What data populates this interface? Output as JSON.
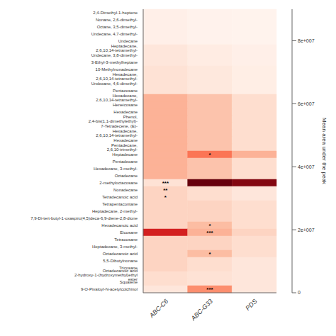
{
  "chart_data": {
    "type": "heatmap",
    "x": [
      "ABC-C6",
      "ABC-G33",
      "PDS"
    ],
    "y": [
      "2,4-Dimethyl-1-heptene",
      "Nonane, 2,6-dimethyl-",
      "Octane, 3,5-dimethyl-",
      "Undecane, 4,7-dimethyl-",
      "Undecane",
      "Heptadecane, 2,6,10,14-tetramethyl-",
      "Undecane, 3,8-dimethyl-",
      "3-Ethyl-3-methylheptane",
      "10-Methylnonadecane",
      "Hexadecane, 2,6,10,14-tetramethyl-",
      "Undecane, 4,6-dimethyl-",
      "Pentacosane",
      "Hexadecane, 2,6,10,14-tetramethyl-",
      "Heneicosane",
      "Hexadecane",
      "Phenol, 2,4-bis(1,1-dimethylethyl)-",
      "7-Tetradecene, (E)-",
      "Hexadecane, 2,6,10,14-tetramethyl-",
      "Hexadecane",
      "Pentadecane, 2,6,10-trimethyl-",
      "Heptadecane",
      "Pentadecane",
      "Hexadecane, 3-methyl-",
      "Octadecane",
      "2-methyloctacosane",
      "Nonadecane",
      "Tetradecanoic acid",
      "Tetrapentacontane",
      "Heptadecane, 2-methyl-",
      "7,9-Di-tert-butyl-1-oxaspiro(4,5)deca-6,9-diene-2,8-dione",
      "Hexadecanoic acid",
      "Eicosane",
      "Tetracosane",
      "Heptadecane, 3-methyl-",
      "Octadecanoic acid",
      "5,5-Dibutylnonane",
      "Tricosane",
      "Octadecanoic acid 2-hydroxy-1-(hydroxymethyl)ethyl ester",
      "Squalene",
      "9-O-Pivaloyl-N-acetylcolchinol"
    ],
    "values": [
      [
        3000000,
        1500000,
        1000000
      ],
      [
        3000000,
        1500000,
        1000000
      ],
      [
        3000000,
        1500000,
        1000000
      ],
      [
        3000000,
        1500000,
        1000000
      ],
      [
        3000000,
        1500000,
        1000000
      ],
      [
        8000000,
        5000000,
        3000000
      ],
      [
        8000000,
        5000000,
        3000000
      ],
      [
        8000000,
        5000000,
        3000000
      ],
      [
        10000000,
        7000000,
        4000000
      ],
      [
        10000000,
        7000000,
        4000000
      ],
      [
        10000000,
        7000000,
        4000000
      ],
      [
        10000000,
        7000000,
        4000000
      ],
      [
        25000000,
        20000000,
        12000000
      ],
      [
        25000000,
        20000000,
        12000000
      ],
      [
        25000000,
        20000000,
        12000000
      ],
      [
        25000000,
        20000000,
        12000000
      ],
      [
        25000000,
        20000000,
        12000000
      ],
      [
        25000000,
        20000000,
        12000000
      ],
      [
        25000000,
        20000000,
        12000000
      ],
      [
        25000000,
        20000000,
        12000000
      ],
      [
        25000000,
        42000000,
        25000000
      ],
      [
        25000000,
        20000000,
        12000000
      ],
      [
        25000000,
        20000000,
        12000000
      ],
      [
        25000000,
        20000000,
        12000000
      ],
      [
        10000000,
        90000000,
        85000000
      ],
      [
        15000000,
        12000000,
        8000000
      ],
      [
        15000000,
        12000000,
        8000000
      ],
      [
        15000000,
        15000000,
        12000000
      ],
      [
        15000000,
        15000000,
        12000000
      ],
      [
        15000000,
        15000000,
        12000000
      ],
      [
        15000000,
        22000000,
        12000000
      ],
      [
        65000000,
        25000000,
        15000000
      ],
      [
        15000000,
        15000000,
        12000000
      ],
      [
        15000000,
        15000000,
        12000000
      ],
      [
        15000000,
        22000000,
        12000000
      ],
      [
        15000000,
        12000000,
        8000000
      ],
      [
        15000000,
        12000000,
        8000000
      ],
      [
        12000000,
        10000000,
        8000000
      ],
      [
        12000000,
        10000000,
        8000000
      ],
      [
        8000000,
        35000000,
        8000000
      ]
    ],
    "annotations": [
      {
        "row": 20,
        "col": 1,
        "text": "*"
      },
      {
        "row": 24,
        "col": 0,
        "text": "***"
      },
      {
        "row": 25,
        "col": 0,
        "text": "**"
      },
      {
        "row": 26,
        "col": 0,
        "text": "*"
      },
      {
        "row": 30,
        "col": 1,
        "text": "*"
      },
      {
        "row": 31,
        "col": 1,
        "text": "***"
      },
      {
        "row": 34,
        "col": 1,
        "text": "*"
      },
      {
        "row": 39,
        "col": 1,
        "text": "***"
      }
    ],
    "colorbar": {
      "label": "Mean area under the peak",
      "range": [
        0,
        90000000
      ],
      "ticks": [
        0,
        {
          "value": 20000000,
          "label": "2e+007"
        },
        {
          "value": 40000000,
          "label": "4e+007"
        },
        {
          "value": 60000000,
          "label": "6e+007"
        },
        {
          "value": 80000000,
          "label": "8e+007"
        }
      ],
      "colors": [
        "#fff5f0",
        "#fee0d2",
        "#fcbba1",
        "#fc9272",
        "#fb6a4a",
        "#ef3b2c",
        "#cb181d",
        "#a50f15",
        "#67000d"
      ]
    }
  }
}
